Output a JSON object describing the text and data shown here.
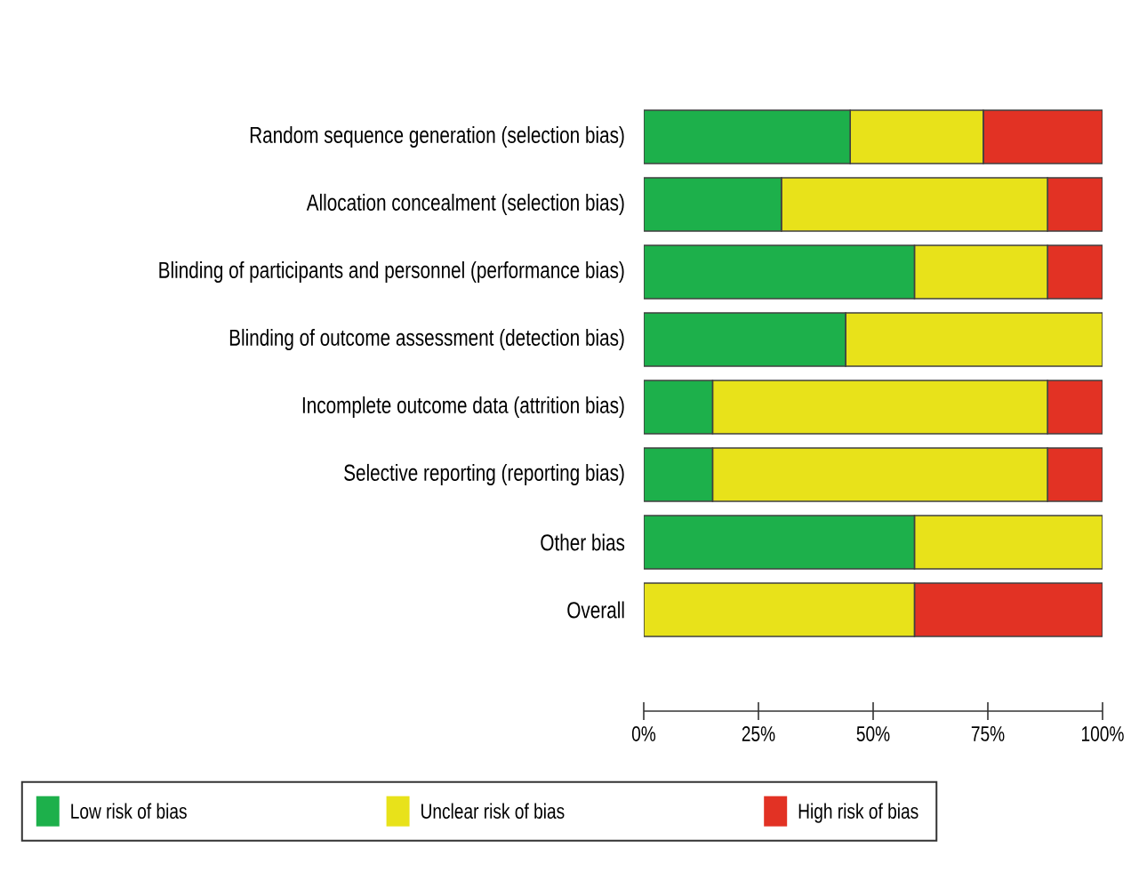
{
  "chart_data": {
    "type": "bar",
    "orientation": "horizontal",
    "stacked": true,
    "categories": [
      "Random sequence generation (selection bias)",
      "Allocation concealment (selection bias)",
      "Blinding of participants and personnel (performance bias)",
      "Blinding of outcome assessment (detection bias)",
      "Incomplete outcome data (attrition bias)",
      "Selective reporting (reporting bias)",
      "Other bias",
      "Overall"
    ],
    "series": [
      {
        "name": "Low risk of bias",
        "color": "#1db04b",
        "values": [
          45,
          30,
          59,
          44,
          15,
          15,
          59,
          0
        ]
      },
      {
        "name": "Unclear risk of bias",
        "color": "#e8e21a",
        "values": [
          29,
          58,
          29,
          56,
          73,
          73,
          41,
          59
        ]
      },
      {
        "name": "High risk of bias",
        "color": "#e23224",
        "values": [
          26,
          12,
          12,
          0,
          12,
          12,
          0,
          41
        ]
      }
    ],
    "xlim": [
      0,
      100
    ],
    "xticks": [
      {
        "value": 0,
        "label": "0%"
      },
      {
        "value": 25,
        "label": "25%"
      },
      {
        "value": 50,
        "label": "50%"
      },
      {
        "value": 75,
        "label": "75%"
      },
      {
        "value": 100,
        "label": "100%"
      }
    ],
    "legend": "bottom"
  }
}
